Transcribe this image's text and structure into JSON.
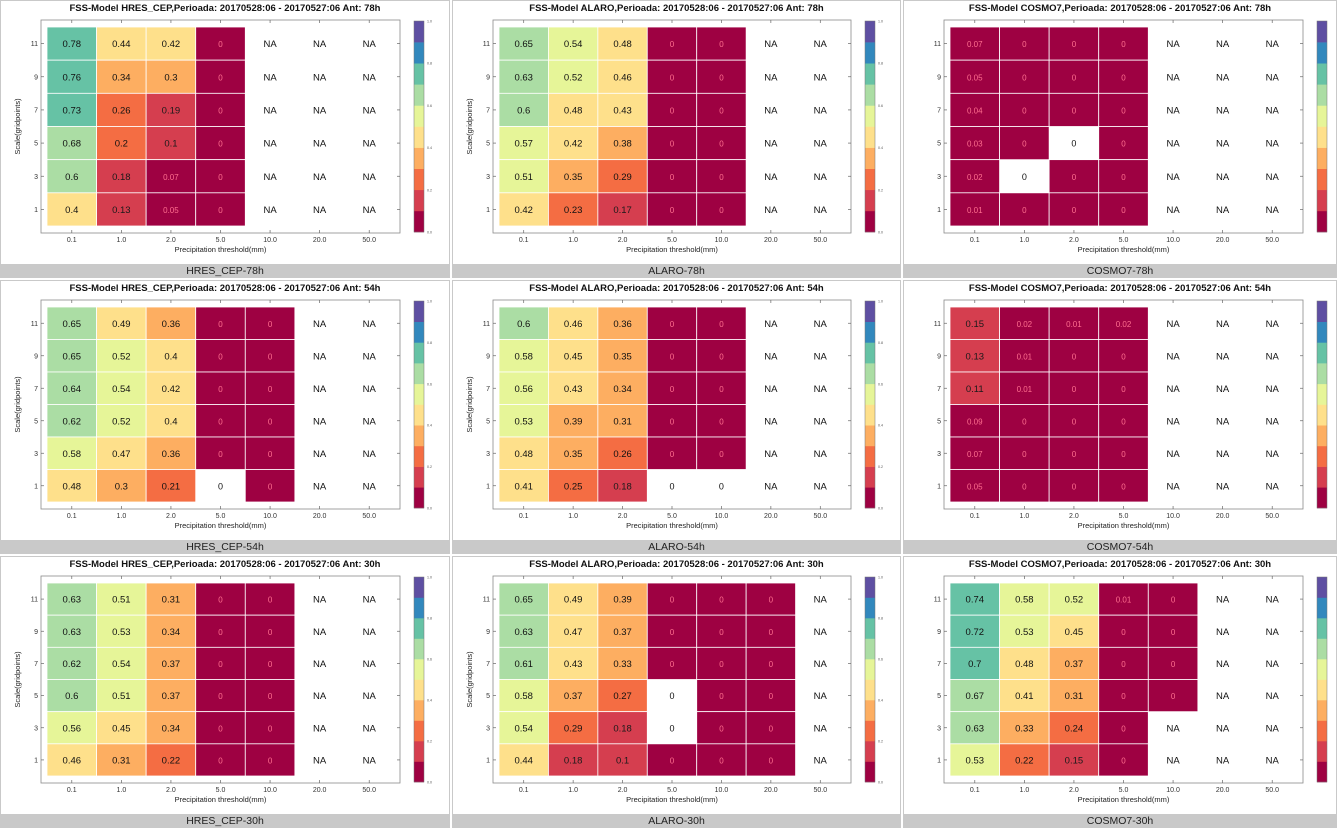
{
  "color_scale": [
    "#9e0142",
    "#d53e4f",
    "#f46d43",
    "#fdae61",
    "#fee08b",
    "#e6f598",
    "#abdda4",
    "#66c2a5",
    "#3288bd",
    "#5e4fa2"
  ],
  "chart_data": [
    {
      "type": "heatmap",
      "title": "FSS-Model HRES_CEP,Perioada: 20170528:06 - 20170527:06 Ant: 78h",
      "panel_label": "HRES_CEP-78h",
      "xlabel": "Precipitation threshold(mm)",
      "ylabel": "Scale(gridpoints)",
      "x_ticks": [
        "0.1",
        "1.0",
        "2.0",
        "5.0",
        "10.0",
        "20.0",
        "50.0"
      ],
      "y_ticks": [
        "11",
        "9",
        "7",
        "5",
        "3",
        "1"
      ],
      "colorbar_ticks": [
        "1.0",
        "0.8",
        "0.6",
        "0.4",
        "0.2",
        "0.0"
      ],
      "colorbar_range": [
        0,
        1
      ],
      "values": [
        [
          "0.78",
          "0.44",
          "0.42",
          "0",
          "NA",
          "NA",
          "NA"
        ],
        [
          "0.76",
          "0.34",
          "0.3",
          "0",
          "NA",
          "NA",
          "NA"
        ],
        [
          "0.73",
          "0.26",
          "0.19",
          "0",
          "NA",
          "NA",
          "NA"
        ],
        [
          "0.68",
          "0.2",
          "0.1",
          "0",
          "NA",
          "NA",
          "NA"
        ],
        [
          "0.6",
          "0.18",
          "0.07",
          "0",
          "NA",
          "NA",
          "NA"
        ],
        [
          "0.4",
          "0.13",
          "0.05",
          "0",
          "NA",
          "NA",
          "NA"
        ]
      ]
    },
    {
      "type": "heatmap",
      "title": "FSS-Model ALARO,Perioada: 20170528:06 - 20170527:06 Ant: 78h",
      "panel_label": "ALARO-78h",
      "xlabel": "Precipitation threshold(mm)",
      "ylabel": "Scale(gridpoints)",
      "x_ticks": [
        "0.1",
        "1.0",
        "2.0",
        "5.0",
        "10.0",
        "20.0",
        "50.0"
      ],
      "y_ticks": [
        "11",
        "9",
        "7",
        "5",
        "3",
        "1"
      ],
      "colorbar_ticks": [
        "1.0",
        "0.8",
        "0.6",
        "0.4",
        "0.2",
        "0.0"
      ],
      "colorbar_range": [
        0,
        1
      ],
      "values": [
        [
          "0.65",
          "0.54",
          "0.48",
          "0",
          "0",
          "NA",
          "NA"
        ],
        [
          "0.63",
          "0.52",
          "0.46",
          "0",
          "0",
          "NA",
          "NA"
        ],
        [
          "0.6",
          "0.48",
          "0.43",
          "0",
          "0",
          "NA",
          "NA"
        ],
        [
          "0.57",
          "0.42",
          "0.38",
          "0",
          "0",
          "NA",
          "NA"
        ],
        [
          "0.51",
          "0.35",
          "0.29",
          "0",
          "0",
          "NA",
          "NA"
        ],
        [
          "0.42",
          "0.23",
          "0.17",
          "0",
          "0",
          "NA",
          "NA"
        ]
      ]
    },
    {
      "type": "heatmap",
      "title": "FSS-Model COSMO7,Perioada: 20170528:06 - 20170527:06 Ant: 78h",
      "panel_label": "COSMO7-78h",
      "xlabel": "Precipitation threshold(mm)",
      "ylabel": "",
      "x_ticks": [
        "0.1",
        "1.0",
        "2.0",
        "5.0",
        "10.0",
        "20.0",
        "50.0"
      ],
      "y_ticks": [
        "11",
        "9",
        "7",
        "5",
        "3",
        "1"
      ],
      "colorbar_ticks": [],
      "colorbar_range": [
        0,
        1
      ],
      "values": [
        [
          "0.07",
          "0",
          "0",
          "0",
          "NA",
          "NA",
          "NA"
        ],
        [
          "0.05",
          "0",
          "0",
          "0",
          "NA",
          "NA",
          "NA"
        ],
        [
          "0.04",
          "0",
          "0",
          "0",
          "NA",
          "NA",
          "NA"
        ],
        [
          "0.03",
          "0",
          "0w",
          "0",
          "NA",
          "NA",
          "NA"
        ],
        [
          "0.02",
          "0w",
          "0",
          "0",
          "NA",
          "NA",
          "NA"
        ],
        [
          "0.01",
          "0",
          "0",
          "0",
          "NA",
          "NA",
          "NA"
        ]
      ]
    },
    {
      "type": "heatmap",
      "title": "FSS-Model HRES_CEP,Perioada: 20170528:06 - 20170527:06 Ant: 54h",
      "panel_label": "HRES_CEP-54h",
      "xlabel": "Precipitation threshold(mm)",
      "ylabel": "Scale(gridpoints)",
      "x_ticks": [
        "0.1",
        "1.0",
        "2.0",
        "5.0",
        "10.0",
        "20.0",
        "50.0"
      ],
      "y_ticks": [
        "11",
        "9",
        "7",
        "5",
        "3",
        "1"
      ],
      "colorbar_ticks": [
        "1.0",
        "0.8",
        "0.6",
        "0.4",
        "0.2",
        "0.0"
      ],
      "colorbar_range": [
        0,
        1
      ],
      "values": [
        [
          "0.65",
          "0.49",
          "0.36",
          "0",
          "0",
          "NA",
          "NA"
        ],
        [
          "0.65",
          "0.52",
          "0.4",
          "0",
          "0",
          "NA",
          "NA"
        ],
        [
          "0.64",
          "0.54",
          "0.42",
          "0",
          "0",
          "NA",
          "NA"
        ],
        [
          "0.62",
          "0.52",
          "0.4",
          "0",
          "0",
          "NA",
          "NA"
        ],
        [
          "0.58",
          "0.47",
          "0.36",
          "0",
          "0",
          "NA",
          "NA"
        ],
        [
          "0.48",
          "0.3",
          "0.21",
          "0w",
          "0",
          "NA",
          "NA"
        ]
      ]
    },
    {
      "type": "heatmap",
      "title": "FSS-Model ALARO,Perioada: 20170528:06 - 20170527:06 Ant: 54h",
      "panel_label": "ALARO-54h",
      "xlabel": "Precipitation threshold(mm)",
      "ylabel": "Scale(gridpoints)",
      "x_ticks": [
        "0.1",
        "1.0",
        "2.0",
        "5.0",
        "10.0",
        "20.0",
        "50.0"
      ],
      "y_ticks": [
        "11",
        "9",
        "7",
        "5",
        "3",
        "1"
      ],
      "colorbar_ticks": [
        "1.0",
        "0.8",
        "0.6",
        "0.4",
        "0.2",
        "0.0"
      ],
      "colorbar_range": [
        0,
        1
      ],
      "values": [
        [
          "0.6",
          "0.46",
          "0.36",
          "0",
          "0",
          "NA",
          "NA"
        ],
        [
          "0.58",
          "0.45",
          "0.35",
          "0",
          "0",
          "NA",
          "NA"
        ],
        [
          "0.56",
          "0.43",
          "0.34",
          "0",
          "0",
          "NA",
          "NA"
        ],
        [
          "0.53",
          "0.39",
          "0.31",
          "0",
          "0",
          "NA",
          "NA"
        ],
        [
          "0.48",
          "0.35",
          "0.26",
          "0",
          "0",
          "NA",
          "NA"
        ],
        [
          "0.41",
          "0.25",
          "0.18",
          "0w",
          "0w",
          "NA",
          "NA"
        ]
      ]
    },
    {
      "type": "heatmap",
      "title": "FSS-Model COSMO7,Perioada: 20170528:06 - 20170527:06 Ant: 54h",
      "panel_label": "COSMO7-54h",
      "xlabel": "Precipitation threshold(mm)",
      "ylabel": "",
      "x_ticks": [
        "0.1",
        "1.0",
        "2.0",
        "5.0",
        "10.0",
        "20.0",
        "50.0"
      ],
      "y_ticks": [
        "11",
        "9",
        "7",
        "5",
        "3",
        "1"
      ],
      "colorbar_ticks": [],
      "colorbar_range": [
        0,
        1
      ],
      "values": [
        [
          "0.15",
          "0.02",
          "0.01",
          "0.02",
          "NA",
          "NA",
          "NA"
        ],
        [
          "0.13",
          "0.01",
          "0",
          "0",
          "NA",
          "NA",
          "NA"
        ],
        [
          "0.11",
          "0.01",
          "0",
          "0",
          "NA",
          "NA",
          "NA"
        ],
        [
          "0.09",
          "0",
          "0",
          "0",
          "NA",
          "NA",
          "NA"
        ],
        [
          "0.07",
          "0",
          "0",
          "0",
          "NA",
          "NA",
          "NA"
        ],
        [
          "0.05",
          "0",
          "0",
          "0",
          "NA",
          "NA",
          "NA"
        ]
      ]
    },
    {
      "type": "heatmap",
      "title": "FSS-Model HRES_CEP,Perioada: 20170528:06 - 20170527:06 Ant: 30h",
      "panel_label": "HRES_CEP-30h",
      "xlabel": "Precipitation threshold(mm)",
      "ylabel": "Scale(gridpoints)",
      "x_ticks": [
        "0.1",
        "1.0",
        "2.0",
        "5.0",
        "10.0",
        "20.0",
        "50.0"
      ],
      "y_ticks": [
        "11",
        "9",
        "7",
        "5",
        "3",
        "1"
      ],
      "colorbar_ticks": [
        "1.0",
        "0.8",
        "0.6",
        "0.4",
        "0.2",
        "0.0"
      ],
      "colorbar_range": [
        0,
        1
      ],
      "values": [
        [
          "0.63",
          "0.51",
          "0.31",
          "0",
          "0",
          "NA",
          "NA"
        ],
        [
          "0.63",
          "0.53",
          "0.34",
          "0",
          "0",
          "NA",
          "NA"
        ],
        [
          "0.62",
          "0.54",
          "0.37",
          "0",
          "0",
          "NA",
          "NA"
        ],
        [
          "0.6",
          "0.51",
          "0.37",
          "0",
          "0",
          "NA",
          "NA"
        ],
        [
          "0.56",
          "0.45",
          "0.34",
          "0",
          "0",
          "NA",
          "NA"
        ],
        [
          "0.46",
          "0.31",
          "0.22",
          "0",
          "0",
          "NA",
          "NA"
        ]
      ]
    },
    {
      "type": "heatmap",
      "title": "FSS-Model ALARO,Perioada: 20170528:06 - 20170527:06 Ant: 30h",
      "panel_label": "ALARO-30h",
      "xlabel": "Precipitation threshold(mm)",
      "ylabel": "Scale(gridpoints)",
      "x_ticks": [
        "0.1",
        "1.0",
        "2.0",
        "5.0",
        "10.0",
        "20.0",
        "50.0"
      ],
      "y_ticks": [
        "11",
        "9",
        "7",
        "5",
        "3",
        "1"
      ],
      "colorbar_ticks": [
        "1.0",
        "0.8",
        "0.6",
        "0.4",
        "0.2",
        "0.0"
      ],
      "colorbar_range": [
        0,
        1
      ],
      "values": [
        [
          "0.65",
          "0.49",
          "0.39",
          "0",
          "0",
          "0",
          "NA"
        ],
        [
          "0.63",
          "0.47",
          "0.37",
          "0",
          "0",
          "0",
          "NA"
        ],
        [
          "0.61",
          "0.43",
          "0.33",
          "0",
          "0",
          "0",
          "NA"
        ],
        [
          "0.58",
          "0.37",
          "0.27",
          "0w",
          "0",
          "0",
          "NA"
        ],
        [
          "0.54",
          "0.29",
          "0.18",
          "0w",
          "0",
          "0",
          "NA"
        ],
        [
          "0.44",
          "0.18",
          "0.1",
          "0",
          "0",
          "0",
          "NA"
        ]
      ]
    },
    {
      "type": "heatmap",
      "title": "FSS-Model COSMO7,Perioada: 20170528:06 - 20170527:06 Ant: 30h",
      "panel_label": "COSMO7-30h",
      "xlabel": "Precipitation threshold(mm)",
      "ylabel": "",
      "x_ticks": [
        "0.1",
        "1.0",
        "2.0",
        "5.0",
        "10.0",
        "20.0",
        "50.0"
      ],
      "y_ticks": [
        "11",
        "9",
        "7",
        "5",
        "3",
        "1"
      ],
      "colorbar_ticks": [],
      "colorbar_range": [
        0,
        1
      ],
      "values": [
        [
          "0.74",
          "0.58",
          "0.52",
          "0.01",
          "0",
          "NA",
          "NA"
        ],
        [
          "0.72",
          "0.53",
          "0.45",
          "0",
          "0",
          "NA",
          "NA"
        ],
        [
          "0.7",
          "0.48",
          "0.37",
          "0",
          "0",
          "NA",
          "NA"
        ],
        [
          "0.67",
          "0.41",
          "0.31",
          "0",
          "0",
          "NA",
          "NA"
        ],
        [
          "0.63",
          "0.33",
          "0.24",
          "0",
          "NA",
          "NA",
          "NA"
        ],
        [
          "0.53",
          "0.22",
          "0.15",
          "0",
          "NA",
          "NA",
          "NA"
        ]
      ]
    }
  ]
}
